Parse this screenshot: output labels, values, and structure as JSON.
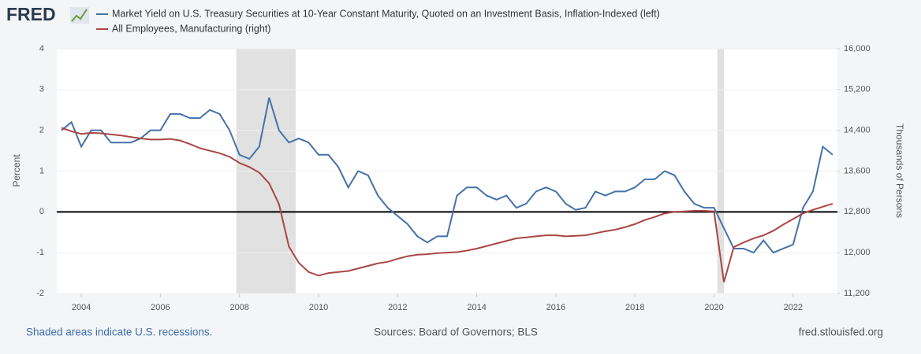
{
  "logo": "FRED",
  "chart_data": {
    "type": "line",
    "x": [
      2003.5,
      2003.75,
      2004.0,
      2004.25,
      2004.5,
      2004.75,
      2005.0,
      2005.25,
      2005.5,
      2005.75,
      2006.0,
      2006.25,
      2006.5,
      2006.75,
      2007.0,
      2007.25,
      2007.5,
      2007.75,
      2008.0,
      2008.25,
      2008.5,
      2008.75,
      2009.0,
      2009.25,
      2009.5,
      2009.75,
      2010.0,
      2010.25,
      2010.5,
      2010.75,
      2011.0,
      2011.25,
      2011.5,
      2011.75,
      2012.0,
      2012.25,
      2012.5,
      2012.75,
      2013.0,
      2013.25,
      2013.5,
      2013.75,
      2014.0,
      2014.25,
      2014.5,
      2014.75,
      2015.0,
      2015.25,
      2015.5,
      2015.75,
      2016.0,
      2016.25,
      2016.5,
      2016.75,
      2017.0,
      2017.25,
      2017.5,
      2017.75,
      2018.0,
      2018.25,
      2018.5,
      2018.75,
      2019.0,
      2019.25,
      2019.5,
      2019.75,
      2020.0,
      2020.25,
      2020.5,
      2020.75,
      2021.0,
      2021.25,
      2021.5,
      2021.75,
      2022.0,
      2022.25,
      2022.5,
      2022.75,
      2023.0
    ],
    "series": [
      {
        "name": "Market Yield on U.S. Treasury Securities at 10-Year Constant Maturity, Quoted on an Investment Basis, Inflation-Indexed (left)",
        "color": "#4572a7",
        "axis": "y",
        "values": [
          2.0,
          2.2,
          1.6,
          2.0,
          2.0,
          1.7,
          1.7,
          1.7,
          1.8,
          2.0,
          2.0,
          2.4,
          2.4,
          2.3,
          2.3,
          2.5,
          2.4,
          2.0,
          1.4,
          1.3,
          1.6,
          2.8,
          2.0,
          1.7,
          1.8,
          1.7,
          1.4,
          1.4,
          1.1,
          0.6,
          1.0,
          0.9,
          0.4,
          0.1,
          -0.1,
          -0.3,
          -0.6,
          -0.75,
          -0.6,
          -0.6,
          0.4,
          0.6,
          0.6,
          0.4,
          0.3,
          0.4,
          0.1,
          0.2,
          0.5,
          0.6,
          0.5,
          0.2,
          0.05,
          0.1,
          0.5,
          0.4,
          0.5,
          0.5,
          0.6,
          0.8,
          0.8,
          1.0,
          0.9,
          0.5,
          0.2,
          0.1,
          0.1,
          -0.4,
          -0.9,
          -0.9,
          -1.0,
          -0.7,
          -1.0,
          -0.9,
          -0.8,
          0.1,
          0.5,
          1.6,
          1.4
        ]
      },
      {
        "name": "All Employees, Manufacturing (right)",
        "color": "#aa4643",
        "axis": "y2",
        "values": [
          14450,
          14380,
          14330,
          14350,
          14340,
          14320,
          14300,
          14270,
          14240,
          14220,
          14220,
          14230,
          14200,
          14130,
          14050,
          14000,
          13950,
          13880,
          13760,
          13680,
          13570,
          13360,
          12950,
          12120,
          11800,
          11620,
          11550,
          11600,
          11620,
          11640,
          11690,
          11740,
          11790,
          11820,
          11880,
          11930,
          11960,
          11970,
          11990,
          12000,
          12010,
          12040,
          12080,
          12130,
          12180,
          12230,
          12280,
          12300,
          12320,
          12340,
          12340,
          12320,
          12330,
          12340,
          12380,
          12420,
          12450,
          12500,
          12560,
          12640,
          12700,
          12770,
          12800,
          12810,
          12820,
          12820,
          12810,
          11420,
          12110,
          12200,
          12280,
          12340,
          12430,
          12550,
          12660,
          12770,
          12840,
          12900,
          12960
        ]
      }
    ],
    "recessions": [
      [
        2007.92,
        2009.42
      ],
      [
        2020.08,
        2020.25
      ]
    ],
    "xlim": [
      2003.38,
      2023.12
    ],
    "xticks": [
      2004,
      2006,
      2008,
      2010,
      2012,
      2014,
      2016,
      2018,
      2020,
      2022
    ],
    "ylim": [
      -2,
      4
    ],
    "yticks": [
      -2,
      -1,
      0,
      1,
      2,
      3,
      4
    ],
    "y2lim": [
      11200,
      16000
    ],
    "y2ticks": [
      {
        "value": 11200,
        "label": "11,200"
      },
      {
        "value": 12000,
        "label": "12,000"
      },
      {
        "value": 12800,
        "label": "12,800"
      },
      {
        "value": 13600,
        "label": "13,600"
      },
      {
        "value": 14400,
        "label": "14,400"
      },
      {
        "value": 15200,
        "label": "15,200"
      },
      {
        "value": 16000,
        "label": "16,000"
      }
    ],
    "ylabel": "Percent",
    "y2label": "Thousands of Persons",
    "grid": true,
    "recession_note": "Shaded areas indicate U.S. recessions.",
    "source": "Sources: Board of Governors; BLS",
    "site": "fred.stlouisfed.org"
  }
}
